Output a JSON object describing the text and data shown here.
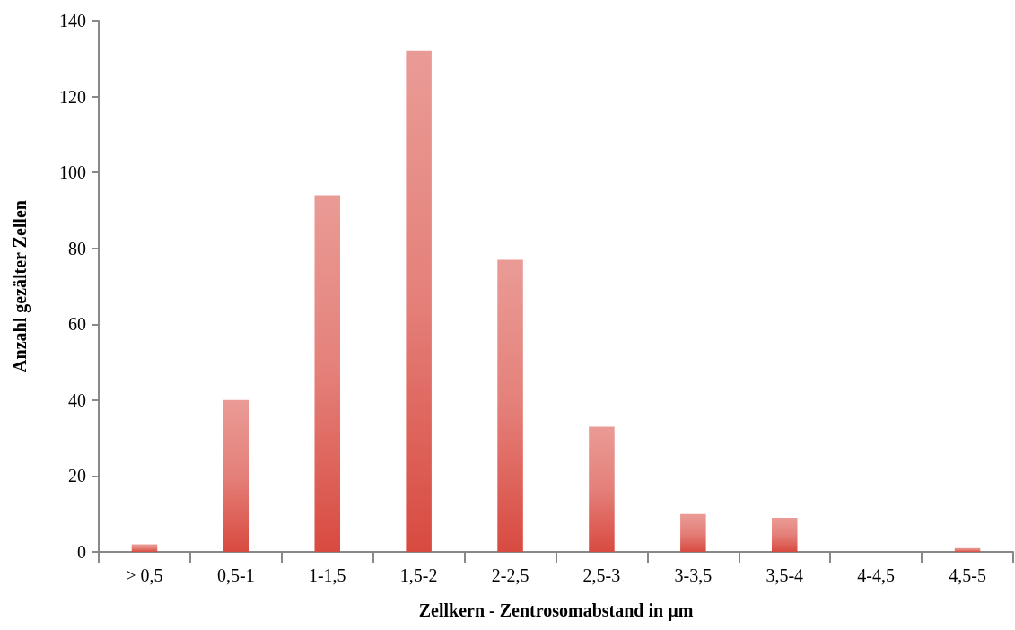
{
  "chart_data": {
    "type": "bar",
    "xlabel": "Zellkern - Zentrosomabstand in µm",
    "ylabel": "Anzahl gezälter Zellen",
    "categories": [
      "> 0,5",
      "0,5-1",
      "1-1,5",
      "1,5-2",
      "2-2,5",
      "2,5-3",
      "3-3,5",
      "3,5-4",
      "4-4,5",
      "4,5-5"
    ],
    "values": [
      2,
      40,
      94,
      132,
      77,
      33,
      10,
      9,
      0,
      1
    ],
    "color": "#d84a40",
    "ylim": [
      0,
      140
    ],
    "yticks": [
      0,
      20,
      40,
      60,
      80,
      100,
      120,
      140
    ],
    "grid": false
  }
}
